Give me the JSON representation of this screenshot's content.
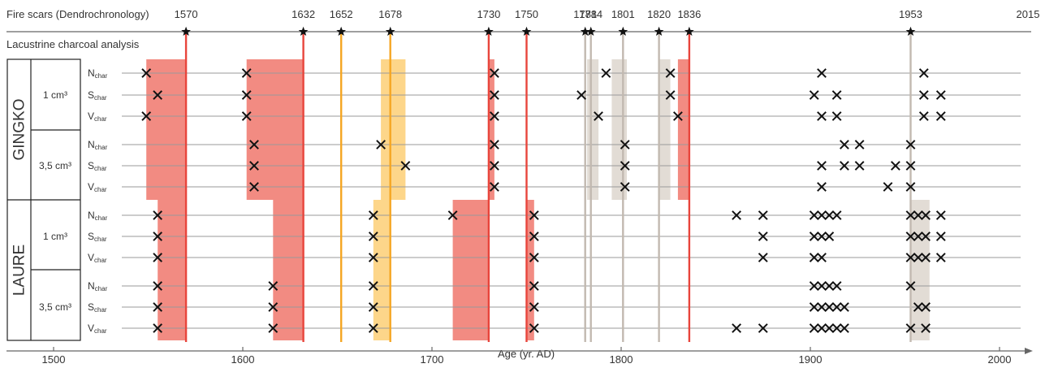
{
  "chart_data": {
    "type": "scatter",
    "fire_scar_axis": {
      "label": "Fire scars (Dendrochronology)",
      "start": "1570",
      "end": "2015",
      "fire_years": [
        "1570",
        "1632",
        "1652",
        "1678",
        "1730",
        "1750",
        "1781",
        "1784",
        "1801",
        "1820",
        "1836",
        "1953"
      ]
    },
    "charcoal_title": "Lacustrine charcoal analysis",
    "xaxis": {
      "label": "Age (yr. AD)",
      "range": [
        1475,
        2015
      ],
      "ticks": [
        "1500",
        "1600",
        "1700",
        "1800",
        "1900",
        "2000"
      ]
    },
    "event_lines": [
      {
        "year": 1570,
        "color": "#e8453c"
      },
      {
        "year": 1632,
        "color": "#e8453c"
      },
      {
        "year": 1652,
        "color": "#f5a623"
      },
      {
        "year": 1678,
        "color": "#f5a623"
      },
      {
        "year": 1730,
        "color": "#e8453c"
      },
      {
        "year": 1750,
        "color": "#e8453c"
      },
      {
        "year": 1781,
        "color": "#c2b9b0"
      },
      {
        "year": 1784,
        "color": "#c2b9b0"
      },
      {
        "year": 1801,
        "color": "#c2b9b0"
      },
      {
        "year": 1820,
        "color": "#c2b9b0"
      },
      {
        "year": 1836,
        "color": "#e8453c"
      },
      {
        "year": 1953,
        "color": "#c2b9b0"
      }
    ],
    "lakes": [
      {
        "name": "GINGKO",
        "groups": [
          {
            "volume": "1 cm³",
            "rows": [
              {
                "label": "N",
                "sub": "char",
                "events": [
                  1549,
                  1602,
                  1733,
                  1792,
                  1826,
                  1906,
                  1960
                ]
              },
              {
                "label": "S",
                "sub": "char",
                "events": [
                  1555,
                  1602,
                  1733,
                  1779,
                  1826,
                  1902,
                  1914,
                  1960,
                  1969
                ]
              },
              {
                "label": "V",
                "sub": "char",
                "events": [
                  1549,
                  1602,
                  1733,
                  1788,
                  1830,
                  1906,
                  1914,
                  1960,
                  1969
                ]
              }
            ]
          },
          {
            "volume": "3,5 cm³",
            "rows": [
              {
                "label": "N",
                "sub": "char",
                "events": [
                  1606,
                  1673,
                  1733,
                  1802,
                  1918,
                  1926,
                  1953
                ]
              },
              {
                "label": "S",
                "sub": "char",
                "events": [
                  1606,
                  1686,
                  1733,
                  1802,
                  1906,
                  1918,
                  1926,
                  1945,
                  1953
                ]
              },
              {
                "label": "V",
                "sub": "char",
                "events": [
                  1606,
                  1733,
                  1802,
                  1906,
                  1941,
                  1953
                ]
              }
            ]
          }
        ]
      },
      {
        "name": "LAURE",
        "groups": [
          {
            "volume": "1 cm³",
            "rows": [
              {
                "label": "N",
                "sub": "char",
                "events": [
                  1555,
                  1669,
                  1711,
                  1754,
                  1861,
                  1875,
                  1902,
                  1906,
                  1910,
                  1914,
                  1953,
                  1957,
                  1961,
                  1969
                ]
              },
              {
                "label": "S",
                "sub": "char",
                "events": [
                  1555,
                  1669,
                  1754,
                  1875,
                  1902,
                  1906,
                  1910,
                  1953,
                  1957,
                  1961,
                  1969
                ]
              },
              {
                "label": "V",
                "sub": "char",
                "events": [
                  1555,
                  1669,
                  1754,
                  1875,
                  1902,
                  1906,
                  1953,
                  1957,
                  1961,
                  1969
                ]
              }
            ]
          },
          {
            "volume": "3,5 cm³",
            "rows": [
              {
                "label": "N",
                "sub": "char",
                "events": [
                  1555,
                  1616,
                  1669,
                  1754,
                  1902,
                  1906,
                  1910,
                  1914,
                  1953
                ]
              },
              {
                "label": "S",
                "sub": "char",
                "events": [
                  1555,
                  1616,
                  1669,
                  1754,
                  1902,
                  1906,
                  1910,
                  1914,
                  1918,
                  1957,
                  1961
                ]
              },
              {
                "label": "V",
                "sub": "char",
                "events": [
                  1555,
                  1616,
                  1669,
                  1754,
                  1861,
                  1875,
                  1902,
                  1906,
                  1910,
                  1914,
                  1918,
                  1953,
                  1961
                ]
              }
            ]
          }
        ]
      }
    ],
    "shaded_periods": [
      {
        "lake": "GINGKO",
        "color": "#f28b82",
        "start": 1549,
        "end": 1570
      },
      {
        "lake": "GINGKO",
        "color": "#f28b82",
        "start": 1602,
        "end": 1632
      },
      {
        "lake": "GINGKO",
        "color": "#fdd68a",
        "start": 1673,
        "end": 1686
      },
      {
        "lake": "GINGKO",
        "color": "#f28b82",
        "start": 1730,
        "end": 1733
      },
      {
        "lake": "GINGKO",
        "color": "#e2dcd5",
        "start": 1782,
        "end": 1788
      },
      {
        "lake": "GINGKO",
        "color": "#e2dcd5",
        "start": 1795,
        "end": 1803
      },
      {
        "lake": "GINGKO",
        "color": "#e2dcd5",
        "start": 1820,
        "end": 1826
      },
      {
        "lake": "GINGKO",
        "color": "#f28b82",
        "start": 1830,
        "end": 1836
      },
      {
        "lake": "LAURE",
        "color": "#f28b82",
        "start": 1555,
        "end": 1570
      },
      {
        "lake": "LAURE",
        "color": "#f28b82",
        "start": 1616,
        "end": 1632
      },
      {
        "lake": "LAURE",
        "color": "#fdd68a",
        "start": 1669,
        "end": 1678
      },
      {
        "lake": "LAURE",
        "color": "#f28b82",
        "start": 1711,
        "end": 1730
      },
      {
        "lake": "LAURE",
        "color": "#f28b82",
        "start": 1750,
        "end": 1754
      },
      {
        "lake": "LAURE",
        "color": "#e2dcd5",
        "start": 1953,
        "end": 1963
      }
    ]
  }
}
